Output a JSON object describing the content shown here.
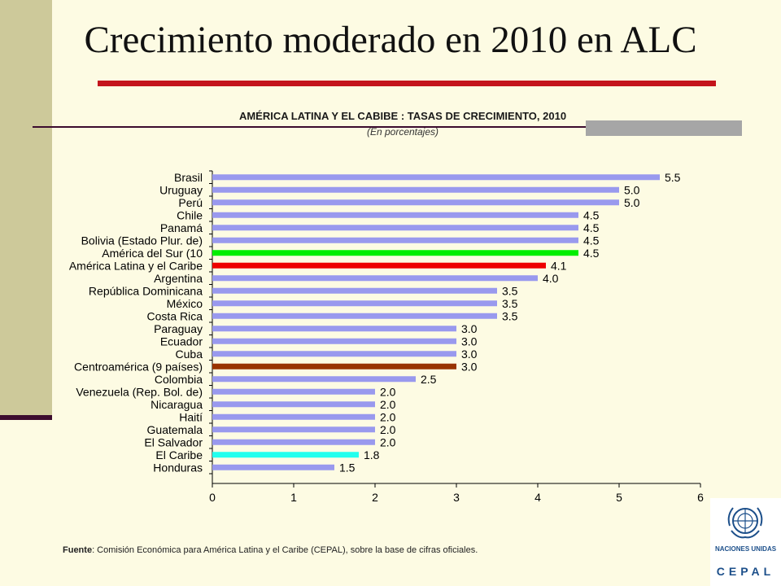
{
  "slide": {
    "title": "Crecimiento moderado en 2010 en ALC",
    "footnote_label": "Fuente",
    "footnote_text": ": Comisión Económica para América Latina y el Caribe (CEPAL), sobre la base de cifras oficiales.",
    "logo_label1": "NACIONES UNIDAS",
    "logo_label2": "CEPAL"
  },
  "chart_data": {
    "type": "bar",
    "orientation": "horizontal",
    "title": "AMÉRICA LATINA Y EL CABIBE : TASAS DE CRECIMIENTO, 2010",
    "subtitle": "(En porcentajes)",
    "xlim": [
      0,
      6
    ],
    "xticks": [
      0,
      1,
      2,
      3,
      4,
      5,
      6
    ],
    "grid": false,
    "legend": "none",
    "categories": [
      "Brasil",
      "Uruguay",
      "Perú",
      "Chile",
      "Panamá",
      "Bolivia (Estado Plur. de)",
      "América del Sur (10",
      "América Latina y el Caribe",
      "Argentina",
      "República Dominicana",
      "México",
      "Costa Rica",
      "Paraguay",
      "Ecuador",
      "Cuba",
      "Centroamérica (9 países)",
      "Colombia",
      "Venezuela (Rep. Bol. de)",
      "Nicaragua",
      "Haití",
      "Guatemala",
      "El Salvador",
      "El Caribe",
      "Honduras"
    ],
    "values": [
      5.5,
      5.0,
      5.0,
      4.5,
      4.5,
      4.5,
      4.5,
      4.1,
      4.0,
      3.5,
      3.5,
      3.5,
      3.0,
      3.0,
      3.0,
      3.0,
      2.5,
      2.0,
      2.0,
      2.0,
      2.0,
      2.0,
      1.8,
      1.5
    ],
    "value_labels": [
      "5.5",
      "5.0",
      "5.0",
      "4.5",
      "4.5",
      "4.5",
      "4.5",
      "4.1",
      "4.0",
      "3.5",
      "3.5",
      "3.5",
      "3.0",
      "3.0",
      "3.0",
      "3.0",
      "2.5",
      "2.0",
      "2.0",
      "2.0",
      "2.0",
      "2.0",
      "1.8",
      "1.5"
    ],
    "bar_colors": [
      "#9999ee",
      "#9999ee",
      "#9999ee",
      "#9999ee",
      "#9999ee",
      "#9999ee",
      "#00ee00",
      "#ee0000",
      "#9999ee",
      "#9999ee",
      "#9999ee",
      "#9999ee",
      "#9999ee",
      "#9999ee",
      "#9999ee",
      "#993300",
      "#9999ee",
      "#9999ee",
      "#9999ee",
      "#9999ee",
      "#9999ee",
      "#9999ee",
      "#22ffee",
      "#9999ee"
    ]
  },
  "colors": {
    "background": "#fdfbe3",
    "side_band": "#cdc99a",
    "title_rule": "#c4141c",
    "default_bar": "#9999ee",
    "logo_blue": "#1c4f8a"
  }
}
